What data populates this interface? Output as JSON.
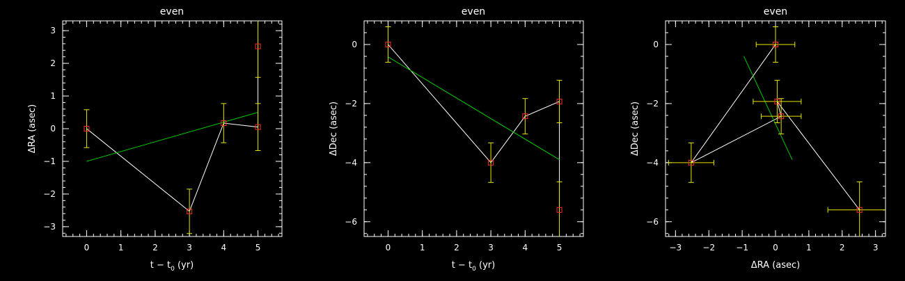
{
  "chart_data": [
    {
      "type": "scatter",
      "title": "even",
      "xlabel": "t − t",
      "xlabel_sub": "0",
      "xlabel_unit": " (yr)",
      "ylabel": "ΔRA (asec)",
      "xlim": [
        -0.7,
        5.7
      ],
      "ylim": [
        -3.3,
        3.3
      ],
      "xticks": [
        0,
        1,
        2,
        3,
        4,
        5
      ],
      "yticks": [
        -3,
        -2,
        -1,
        0,
        1,
        2,
        3
      ],
      "points": [
        {
          "x": 0,
          "y": 0.0,
          "yerr": 0.58
        },
        {
          "x": 3,
          "y": -2.53,
          "yerr": 0.68
        },
        {
          "x": 4,
          "y": 0.17,
          "yerr": 0.6
        },
        {
          "x": 5,
          "y": 0.05,
          "yerr": 0.72
        },
        {
          "x": 5,
          "y": 2.52,
          "yerr": 0.95
        }
      ],
      "connect_order": [
        0,
        1,
        2,
        3,
        4
      ],
      "fit_line": [
        [
          0,
          -1.0
        ],
        [
          5,
          0.5
        ]
      ],
      "colors": {
        "point": "#ff2a2a",
        "error": "#e6e600",
        "connector": "#ffffff",
        "fit": "#00cc00"
      }
    },
    {
      "type": "scatter",
      "title": "even",
      "xlabel": "t − t",
      "xlabel_sub": "0",
      "xlabel_unit": " (yr)",
      "ylabel": "ΔDec (asec)",
      "xlim": [
        -0.7,
        5.7
      ],
      "ylim": [
        -6.5,
        0.8
      ],
      "xticks": [
        0,
        1,
        2,
        3,
        4,
        5
      ],
      "yticks": [
        -6,
        -4,
        -2,
        0
      ],
      "points": [
        {
          "x": 0,
          "y": 0.0,
          "yerr": 0.6
        },
        {
          "x": 3,
          "y": -4.0,
          "yerr": 0.67
        },
        {
          "x": 4,
          "y": -2.43,
          "yerr": 0.6
        },
        {
          "x": 5,
          "y": -1.93,
          "yerr": 0.72
        },
        {
          "x": 5,
          "y": -5.6,
          "yerr": 0.95
        }
      ],
      "connect_order": [
        0,
        1,
        2,
        3,
        4
      ],
      "fit_line": [
        [
          0,
          -0.42
        ],
        [
          5,
          -3.9
        ]
      ],
      "colors": {
        "point": "#ff2a2a",
        "error": "#e6e600",
        "connector": "#ffffff",
        "fit": "#00cc00"
      }
    },
    {
      "type": "scatter",
      "title": "even",
      "xlabel": "ΔRA (asec)",
      "xlabel_sub": "",
      "xlabel_unit": "",
      "ylabel": "ΔDec (asec)",
      "xlim": [
        -3.3,
        3.3
      ],
      "ylim": [
        -6.5,
        0.8
      ],
      "xticks": [
        -3,
        -2,
        -1,
        0,
        1,
        2,
        3
      ],
      "yticks": [
        -6,
        -4,
        -2,
        0
      ],
      "points": [
        {
          "x": 0.0,
          "y": 0.0,
          "xerr": 0.58,
          "yerr": 0.6
        },
        {
          "x": -2.53,
          "y": -4.0,
          "xerr": 0.68,
          "yerr": 0.67
        },
        {
          "x": 0.17,
          "y": -2.43,
          "xerr": 0.6,
          "yerr": 0.6
        },
        {
          "x": 0.05,
          "y": -1.93,
          "xerr": 0.72,
          "yerr": 0.72
        },
        {
          "x": 2.52,
          "y": -5.6,
          "xerr": 0.95,
          "yerr": 0.95
        }
      ],
      "connect_order": [
        0,
        1,
        2,
        3,
        4
      ],
      "fit_line": [
        [
          -0.95,
          -0.4
        ],
        [
          0.5,
          -3.9
        ]
      ],
      "colors": {
        "point": "#ff2a2a",
        "error": "#e6e600",
        "connector": "#ffffff",
        "fit": "#00cc00"
      }
    }
  ]
}
